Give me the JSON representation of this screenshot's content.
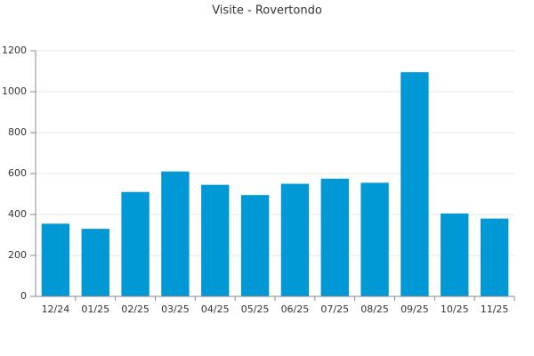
{
  "chart_data": {
    "type": "bar",
    "title": "Visite - Rovertondo",
    "categories": [
      "12/24",
      "01/25",
      "02/25",
      "03/25",
      "04/25",
      "05/25",
      "06/25",
      "07/25",
      "08/25",
      "09/25",
      "10/25",
      "11/25"
    ],
    "values": [
      355,
      330,
      510,
      610,
      545,
      495,
      550,
      575,
      555,
      1095,
      405,
      380
    ],
    "color": "#0099d6",
    "ylim": [
      0,
      1200
    ],
    "yticks": [
      0,
      200,
      400,
      600,
      800,
      1000,
      1200
    ],
    "grid": true
  }
}
